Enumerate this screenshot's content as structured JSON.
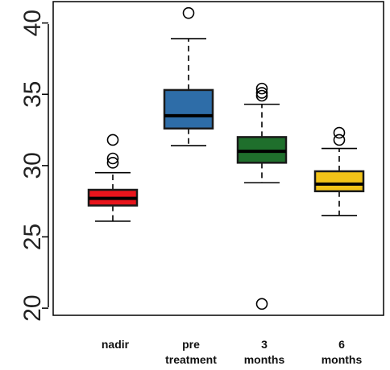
{
  "chart_data": {
    "type": "boxplot",
    "title": "",
    "xlabel": "",
    "ylabel": "",
    "ylim": [
      19.5,
      41.5
    ],
    "yticks": [
      20,
      25,
      30,
      35,
      40
    ],
    "grid": false,
    "categories": [
      {
        "label_lines": [
          "nadir"
        ],
        "color": "#e8141c"
      },
      {
        "label_lines": [
          "pre",
          "treatment"
        ],
        "color": "#2e6da8"
      },
      {
        "label_lines": [
          "3",
          "months"
        ],
        "color": "#1f6f2c"
      },
      {
        "label_lines": [
          "6",
          "months"
        ],
        "color": "#f2c318"
      }
    ],
    "series": [
      {
        "whisker_low": 26.1,
        "q1": 27.2,
        "median": 27.7,
        "q3": 28.3,
        "whisker_high": 29.5,
        "outliers": [
          30.2,
          30.5,
          31.8
        ]
      },
      {
        "whisker_low": 31.4,
        "q1": 32.6,
        "median": 33.5,
        "q3": 35.3,
        "whisker_high": 38.9,
        "outliers": [
          40.7
        ]
      },
      {
        "whisker_low": 28.8,
        "q1": 30.2,
        "median": 31.0,
        "q3": 32.0,
        "whisker_high": 34.3,
        "outliers": [
          20.3,
          34.9,
          35.1,
          35.4
        ]
      },
      {
        "whisker_low": 26.5,
        "q1": 28.2,
        "median": 28.7,
        "q3": 29.6,
        "whisker_high": 31.2,
        "outliers": [
          31.8,
          32.3
        ]
      }
    ]
  }
}
